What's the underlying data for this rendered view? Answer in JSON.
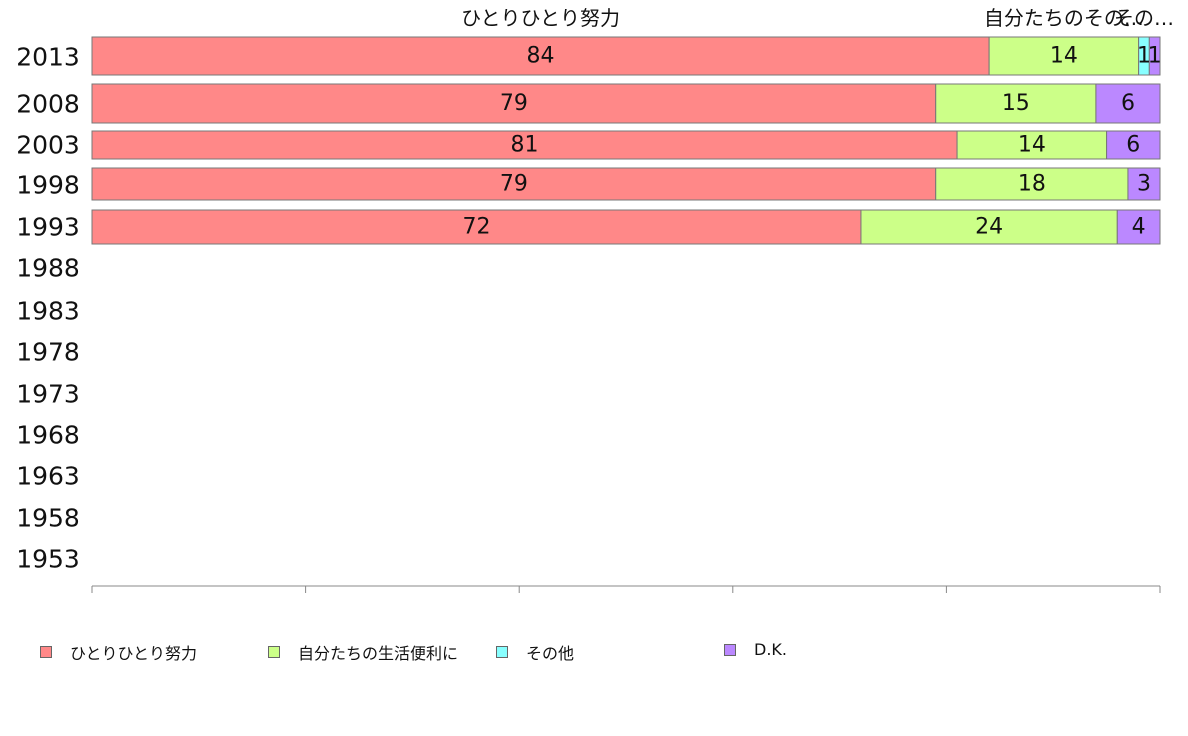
{
  "chart_data": {
    "type": "bar",
    "orientation": "horizontal",
    "stacked": true,
    "categories": [
      "2013",
      "2008",
      "2003",
      "1998",
      "1993",
      "1988",
      "1983",
      "1978",
      "1973",
      "1968",
      "1963",
      "1958",
      "1953"
    ],
    "series": [
      {
        "name": "ひとりひとり努力",
        "color": "#ff8888",
        "values": [
          84,
          79,
          81,
          79,
          72,
          null,
          null,
          null,
          null,
          null,
          null,
          null,
          null
        ]
      },
      {
        "name": "自分たちの生活便利に",
        "color": "#ccff88",
        "values": [
          14,
          15,
          14,
          18,
          24,
          null,
          null,
          null,
          null,
          null,
          null,
          null,
          null
        ]
      },
      {
        "name": "その他",
        "color": "#88ffff",
        "values": [
          1,
          0,
          0,
          0,
          0,
          null,
          null,
          null,
          null,
          null,
          null,
          null,
          null
        ]
      },
      {
        "name": "D.K.",
        "color": "#bb88ff",
        "values": [
          1,
          6,
          6,
          3,
          4,
          null,
          null,
          null,
          null,
          null,
          null,
          null,
          null
        ]
      }
    ],
    "top_labels": [
      "ひとりひとり努力",
      "自分たちの生活便利に",
      "その他",
      "D.K."
    ],
    "top_labels_shown": [
      "ひとりひとり努力",
      "自分たちのその…",
      "その…",
      ""
    ],
    "xlim": [
      0,
      100
    ],
    "xticks": [
      "0",
      "20",
      "40",
      "60",
      "80",
      "100"
    ],
    "grid": false,
    "legend_position": "bottom"
  }
}
